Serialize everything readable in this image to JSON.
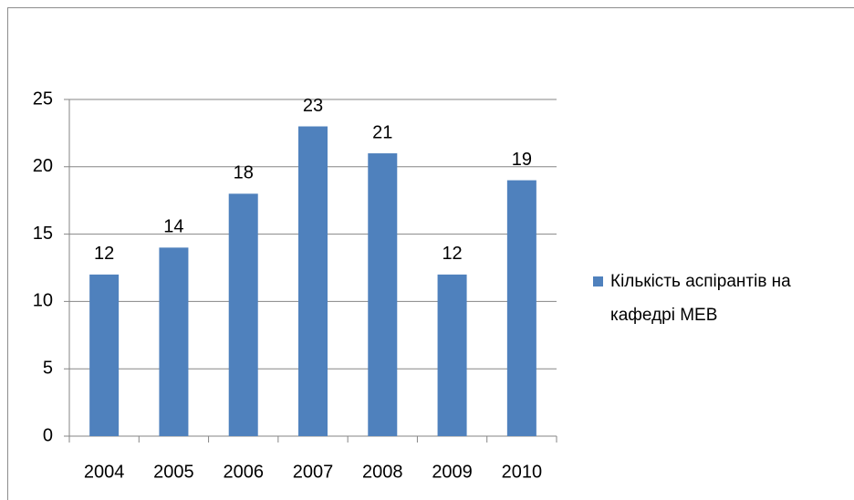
{
  "chart_data": {
    "type": "bar",
    "categories": [
      "2004",
      "2005",
      "2006",
      "2007",
      "2008",
      "2009",
      "2010"
    ],
    "series": [
      {
        "name": "Кількість аспірантів на кафедрі МЕВ",
        "color": "#4f81bd",
        "values": [
          12,
          14,
          18,
          23,
          21,
          12,
          19
        ]
      }
    ],
    "ylim": [
      0,
      25
    ],
    "yticks": [
      0,
      5,
      10,
      15,
      20,
      25
    ],
    "grid": true,
    "legend": "right"
  }
}
